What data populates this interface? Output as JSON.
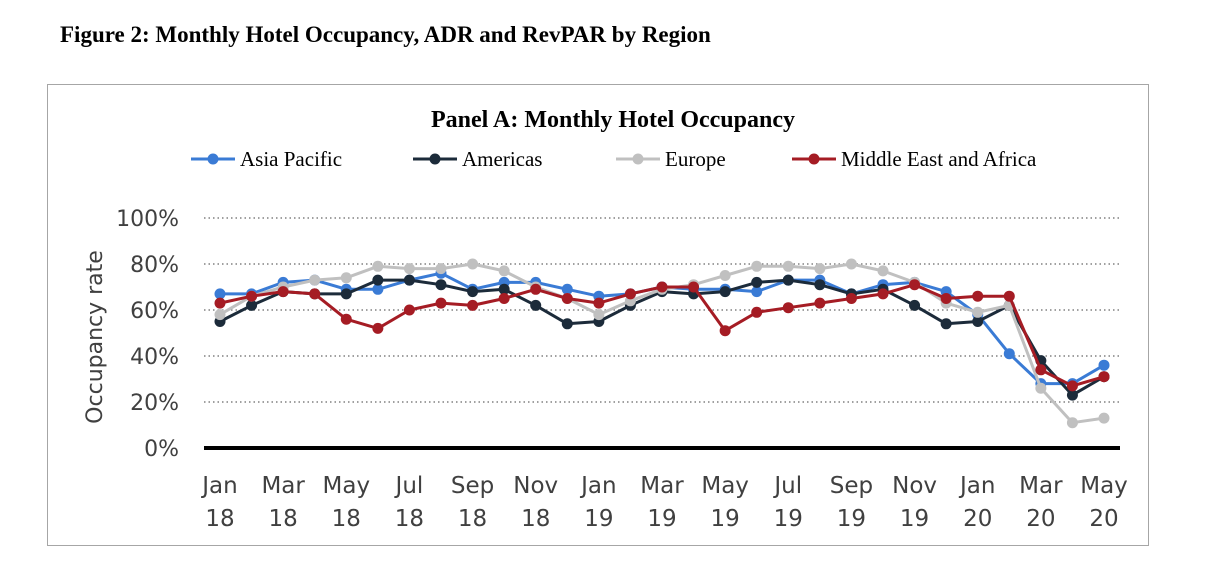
{
  "figure_title": "Figure 2: Monthly Hotel Occupancy, ADR and RevPAR by Region",
  "chart_data": {
    "type": "line",
    "title": "Panel A: Monthly Hotel Occupancy",
    "ylabel": "Occupancy rate",
    "xlabel": "",
    "ylim": [
      0,
      100
    ],
    "yticks": [
      "0%",
      "20%",
      "40%",
      "60%",
      "80%",
      "100%"
    ],
    "grid": "horizontal dotted",
    "legend_position": "top",
    "x_tick_labels": [
      [
        "Jan",
        "18"
      ],
      [
        "Mar",
        "18"
      ],
      [
        "May",
        "18"
      ],
      [
        "Jul",
        "18"
      ],
      [
        "Sep",
        "18"
      ],
      [
        "Nov",
        "18"
      ],
      [
        "Jan",
        "19"
      ],
      [
        "Mar",
        "19"
      ],
      [
        "May",
        "19"
      ],
      [
        "Jul",
        "19"
      ],
      [
        "Sep",
        "19"
      ],
      [
        "Nov",
        "19"
      ],
      [
        "Jan",
        "20"
      ],
      [
        "Mar",
        "20"
      ],
      [
        "May",
        "20"
      ]
    ],
    "x": [
      "Jan 18",
      "Feb 18",
      "Mar 18",
      "Apr 18",
      "May 18",
      "Jun 18",
      "Jul 18",
      "Aug 18",
      "Sep 18",
      "Oct 18",
      "Nov 18",
      "Dec 18",
      "Jan 19",
      "Feb 19",
      "Mar 19",
      "Apr 19",
      "May 19",
      "Jun 19",
      "Jul 19",
      "Aug 19",
      "Sep 19",
      "Oct 19",
      "Nov 19",
      "Dec 19",
      "Jan 20",
      "Feb 20",
      "Mar 20",
      "Apr 20",
      "May 20"
    ],
    "series": [
      {
        "name": "Asia Pacific",
        "color": "#3a7bd5",
        "values": [
          67,
          67,
          72,
          73,
          69,
          69,
          73,
          76,
          69,
          72,
          72,
          69,
          66,
          67,
          70,
          69,
          69,
          68,
          73,
          73,
          67,
          71,
          72,
          68,
          58,
          41,
          28,
          28,
          36
        ]
      },
      {
        "name": "Americas",
        "color": "#1c2b3a",
        "values": [
          55,
          62,
          68,
          67,
          67,
          73,
          73,
          71,
          68,
          69,
          62,
          54,
          55,
          62,
          68,
          67,
          68,
          72,
          73,
          71,
          67,
          69,
          62,
          54,
          55,
          62,
          38,
          23,
          31
        ]
      },
      {
        "name": "Europe",
        "color": "#c0c0c0",
        "values": [
          58,
          66,
          70,
          73,
          74,
          79,
          78,
          78,
          80,
          77,
          70,
          65,
          58,
          64,
          69,
          71,
          75,
          79,
          79,
          78,
          80,
          77,
          72,
          63,
          59,
          62,
          26,
          11,
          13
        ]
      },
      {
        "name": "Middle East and Africa",
        "color": "#a51c24",
        "values": [
          63,
          66,
          68,
          67,
          56,
          52,
          60,
          63,
          62,
          65,
          69,
          65,
          63,
          67,
          70,
          70,
          51,
          59,
          61,
          63,
          65,
          67,
          71,
          65,
          66,
          66,
          34,
          27,
          31
        ]
      }
    ]
  }
}
